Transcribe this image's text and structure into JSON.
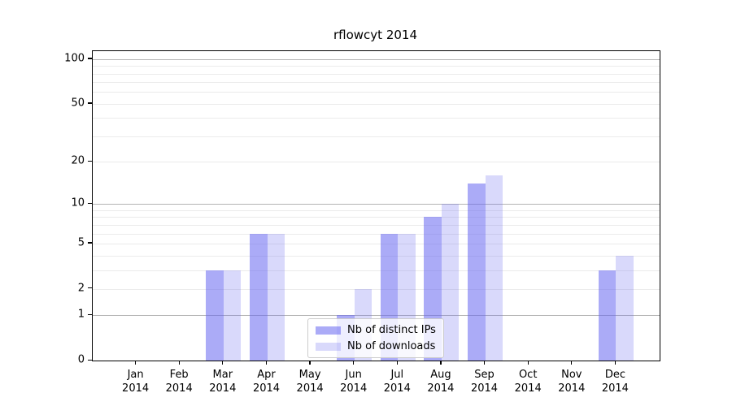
{
  "chart_data": {
    "type": "bar",
    "title": "rflowcyt 2014",
    "categories": [
      "Jan",
      "Feb",
      "Mar",
      "Apr",
      "May",
      "Jun",
      "Jul",
      "Aug",
      "Sep",
      "Oct",
      "Nov",
      "Dec"
    ],
    "category_year": "2014",
    "series": [
      {
        "name": "Nb of distinct IPs",
        "color": "rgba(102,102,240,0.55)",
        "values": [
          0,
          0,
          3,
          6,
          0,
          1,
          6,
          8,
          14,
          0,
          0,
          3
        ]
      },
      {
        "name": "Nb of downloads",
        "color": "rgba(102,102,240,0.25)",
        "values": [
          0,
          0,
          3,
          6,
          0,
          2,
          6,
          10,
          16,
          0,
          0,
          4
        ]
      }
    ],
    "xlabel": "",
    "ylabel": "",
    "y_scale": "log1p",
    "y_ticks": [
      0,
      1,
      2,
      5,
      10,
      20,
      50,
      100
    ],
    "y_minor_gridlines": [
      2,
      3,
      4,
      5,
      6,
      7,
      8,
      9,
      20,
      30,
      40,
      50,
      60,
      70,
      80,
      90
    ],
    "y_major_gridlines": [
      1,
      10,
      100
    ],
    "ylim": [
      0,
      113
    ],
    "grid": "horizontal",
    "legend_position": "lower center",
    "colors": {
      "bar_dark": "#aaaaf5",
      "bar_light": "#d9d9fa",
      "grid_major": "#b4b4b4",
      "grid_minor": "#ebebeb",
      "spine": "#000000",
      "background": "#ffffff"
    }
  }
}
